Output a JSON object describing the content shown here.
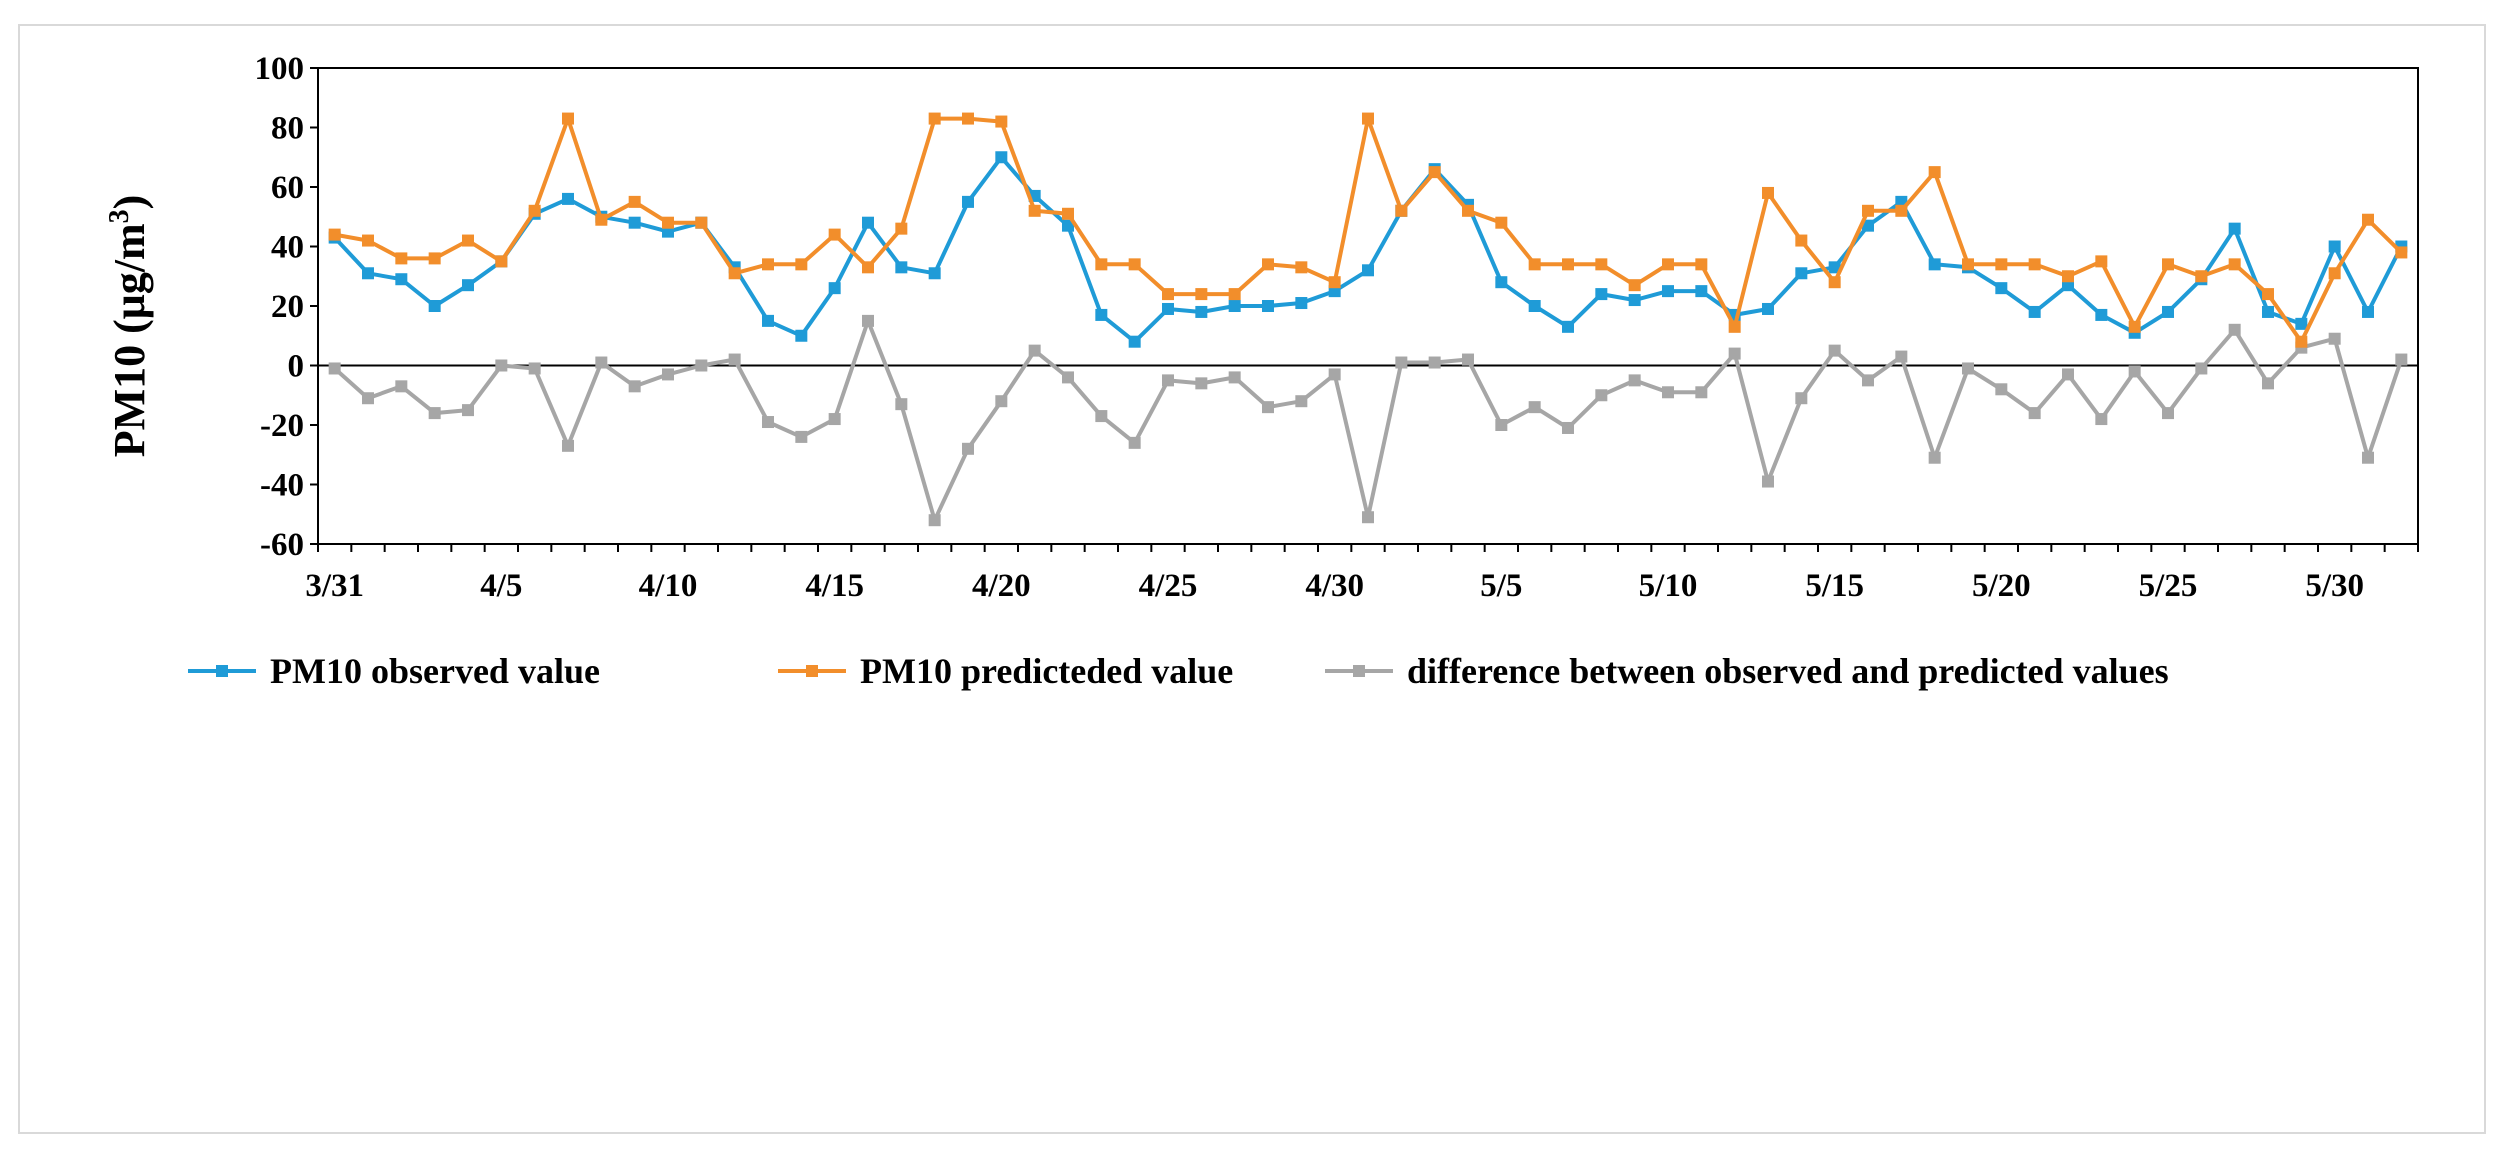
{
  "chart_data": {
    "type": "line",
    "title": "",
    "xlabel": "",
    "ylabel": "PM10 (μg/m3)",
    "ylabel_parts": {
      "main": "PM10 (μg/m",
      "sup": "3",
      "close": ")"
    },
    "ylim": [
      -60,
      100
    ],
    "yticks": [
      -60,
      -40,
      -20,
      0,
      20,
      40,
      60,
      80,
      100
    ],
    "grid": false,
    "legend_position": "bottom",
    "categories": [
      "3/31",
      "4/1",
      "4/2",
      "4/3",
      "4/4",
      "4/5",
      "4/6",
      "4/7",
      "4/8",
      "4/9",
      "4/10",
      "4/11",
      "4/12",
      "4/13",
      "4/14",
      "4/15",
      "4/16",
      "4/17",
      "4/18",
      "4/19",
      "4/20",
      "4/21",
      "4/22",
      "4/23",
      "4/24",
      "4/25",
      "4/26",
      "4/27",
      "4/28",
      "4/29",
      "4/30",
      "5/1",
      "5/2",
      "5/3",
      "5/4",
      "5/5",
      "5/6",
      "5/7",
      "5/8",
      "5/9",
      "5/10",
      "5/11",
      "5/12",
      "5/13",
      "5/14",
      "5/15",
      "5/16",
      "5/17",
      "5/18",
      "5/19",
      "5/20",
      "5/21",
      "5/22",
      "5/23",
      "5/24",
      "5/25",
      "5/26",
      "5/27",
      "5/28",
      "5/29",
      "5/30",
      "5/31",
      "6/1"
    ],
    "xtick_labels": [
      {
        "index": 0,
        "label": "3/31"
      },
      {
        "index": 5,
        "label": "4/5"
      },
      {
        "index": 10,
        "label": "4/10"
      },
      {
        "index": 15,
        "label": "4/15"
      },
      {
        "index": 20,
        "label": "4/20"
      },
      {
        "index": 25,
        "label": "4/25"
      },
      {
        "index": 30,
        "label": "4/30"
      },
      {
        "index": 35,
        "label": "5/5"
      },
      {
        "index": 40,
        "label": "5/10"
      },
      {
        "index": 45,
        "label": "5/15"
      },
      {
        "index": 50,
        "label": "5/20"
      },
      {
        "index": 55,
        "label": "5/25"
      },
      {
        "index": 60,
        "label": "5/30"
      }
    ],
    "series": [
      {
        "name": "PM10 observed value",
        "color": "#1f9bd7",
        "values": [
          43,
          31,
          29,
          20,
          27,
          35,
          51,
          56,
          50,
          48,
          45,
          48,
          33,
          15,
          10,
          26,
          48,
          33,
          31,
          55,
          70,
          57,
          47,
          17,
          8,
          19,
          18,
          20,
          20,
          21,
          25,
          32,
          52,
          66,
          54,
          28,
          20,
          13,
          24,
          22,
          25,
          25,
          17,
          19,
          31,
          33,
          47,
          55,
          34,
          33,
          26,
          18,
          27,
          17,
          11,
          18,
          29,
          46,
          18,
          14,
          40,
          18,
          40
        ]
      },
      {
        "name": "PM10 predicteded value",
        "color": "#f28e2b",
        "values": [
          44,
          42,
          36,
          36,
          42,
          35,
          52,
          83,
          49,
          55,
          48,
          48,
          31,
          34,
          34,
          44,
          33,
          46,
          83,
          83,
          82,
          52,
          51,
          34,
          34,
          24,
          24,
          24,
          34,
          33,
          28,
          83,
          52,
          65,
          52,
          48,
          34,
          34,
          34,
          27,
          34,
          34,
          13,
          58,
          42,
          28,
          52,
          52,
          65,
          34,
          34,
          34,
          30,
          35,
          13,
          34,
          30,
          34,
          24,
          8,
          31,
          49,
          38
        ]
      },
      {
        "name": "difference between observed and predicted values",
        "color": "#a6a6a6",
        "values": [
          -1,
          -11,
          -7,
          -16,
          -15,
          0,
          -1,
          -27,
          1,
          -7,
          -3,
          0,
          2,
          -19,
          -24,
          -18,
          15,
          -13,
          -52,
          -28,
          -12,
          5,
          -4,
          -17,
          -26,
          -5,
          -6,
          -4,
          -14,
          -12,
          -3,
          -51,
          1,
          1,
          2,
          -20,
          -14,
          -21,
          -10,
          -5,
          -9,
          -9,
          4,
          -39,
          -11,
          5,
          -5,
          3,
          -31,
          -1,
          -8,
          -16,
          -3,
          -18,
          -2,
          -16,
          -1,
          12,
          -6,
          6,
          9,
          -31,
          2
        ]
      }
    ]
  }
}
